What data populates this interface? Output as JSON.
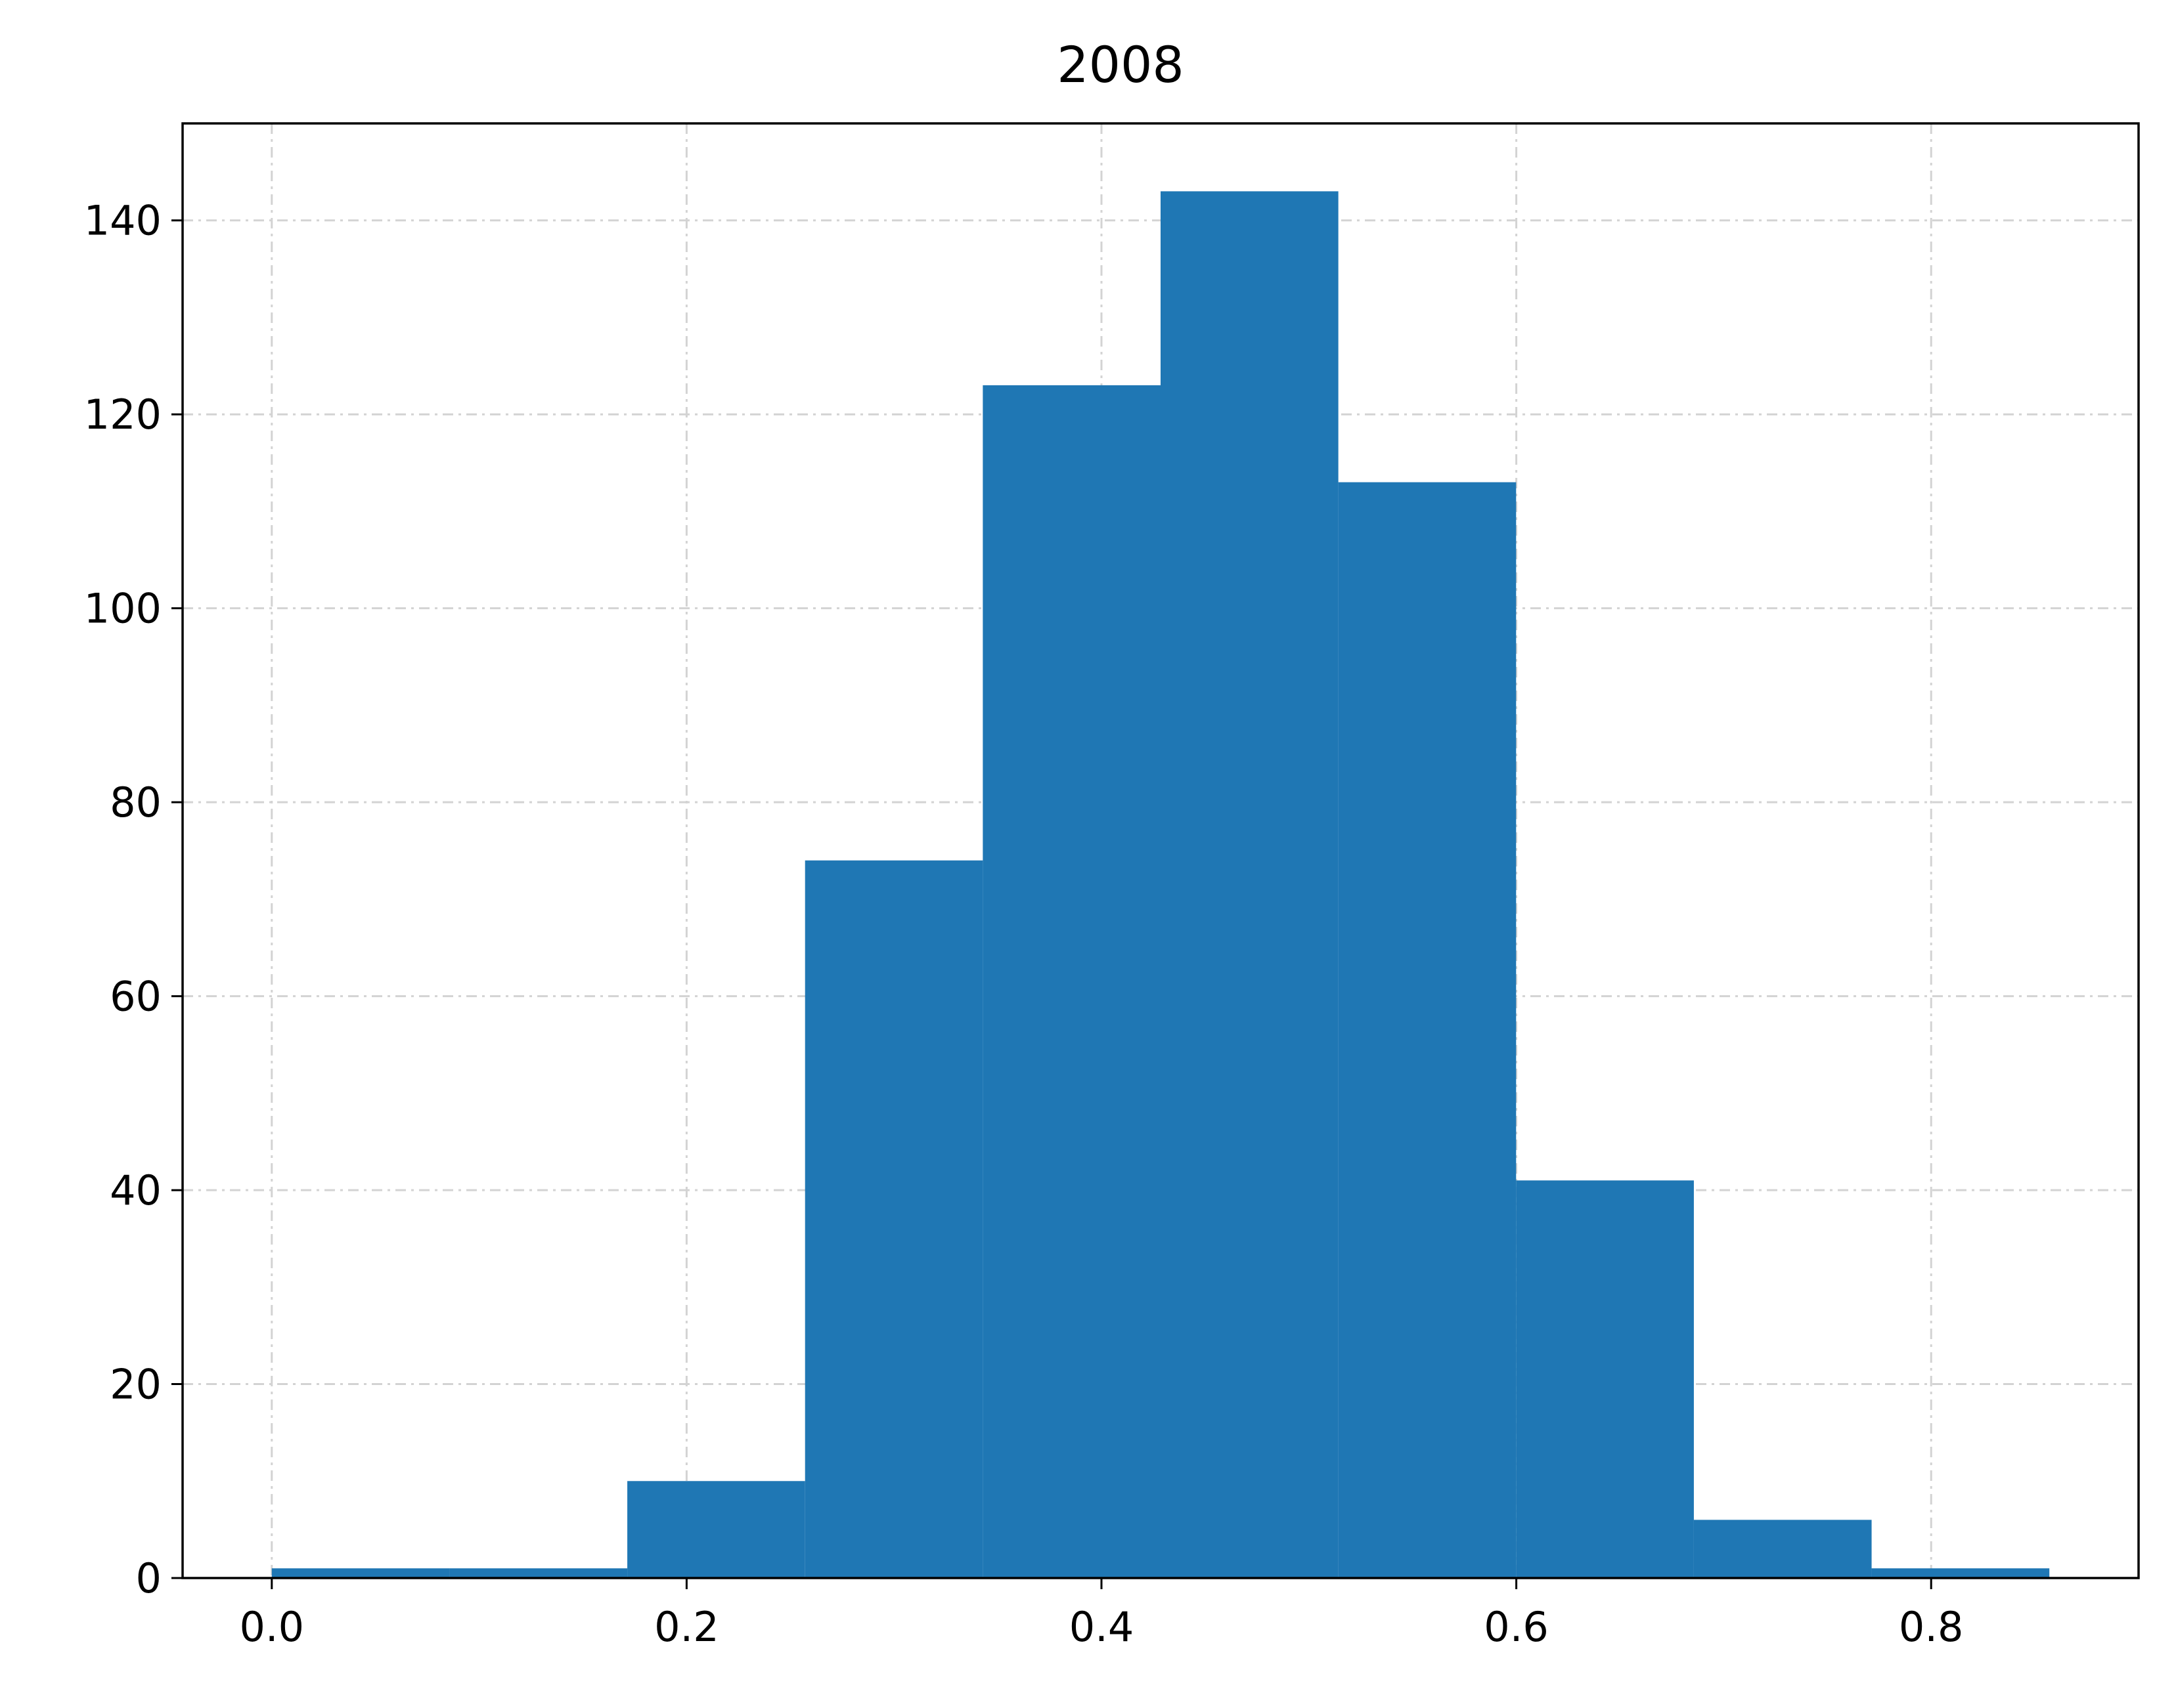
{
  "chart_data": {
    "type": "bar",
    "title": "2008",
    "xlabel": "",
    "ylabel": "",
    "bin_edges": [
      0.0,
      0.0857,
      0.1714,
      0.2571,
      0.3428,
      0.4285,
      0.5142,
      0.5999,
      0.6856,
      0.7713,
      0.857
    ],
    "values": [
      1,
      1,
      10,
      74,
      123,
      143,
      113,
      41,
      6,
      1
    ],
    "xlim": [
      -0.043,
      0.9
    ],
    "ylim": [
      0,
      150
    ],
    "x_ticks": [
      0.0,
      0.2,
      0.4,
      0.6,
      0.8
    ],
    "x_tick_labels": [
      "0.0",
      "0.2",
      "0.4",
      "0.6",
      "0.8"
    ],
    "y_ticks": [
      0,
      20,
      40,
      60,
      80,
      100,
      120,
      140
    ],
    "y_tick_labels": [
      "0",
      "20",
      "40",
      "60",
      "80",
      "100",
      "120",
      "140"
    ],
    "grid": true,
    "grid_style": "dash-dot",
    "colors": {
      "bar": "#1f77b4",
      "grid": "#d3d3d3",
      "axis": "#000000"
    }
  }
}
